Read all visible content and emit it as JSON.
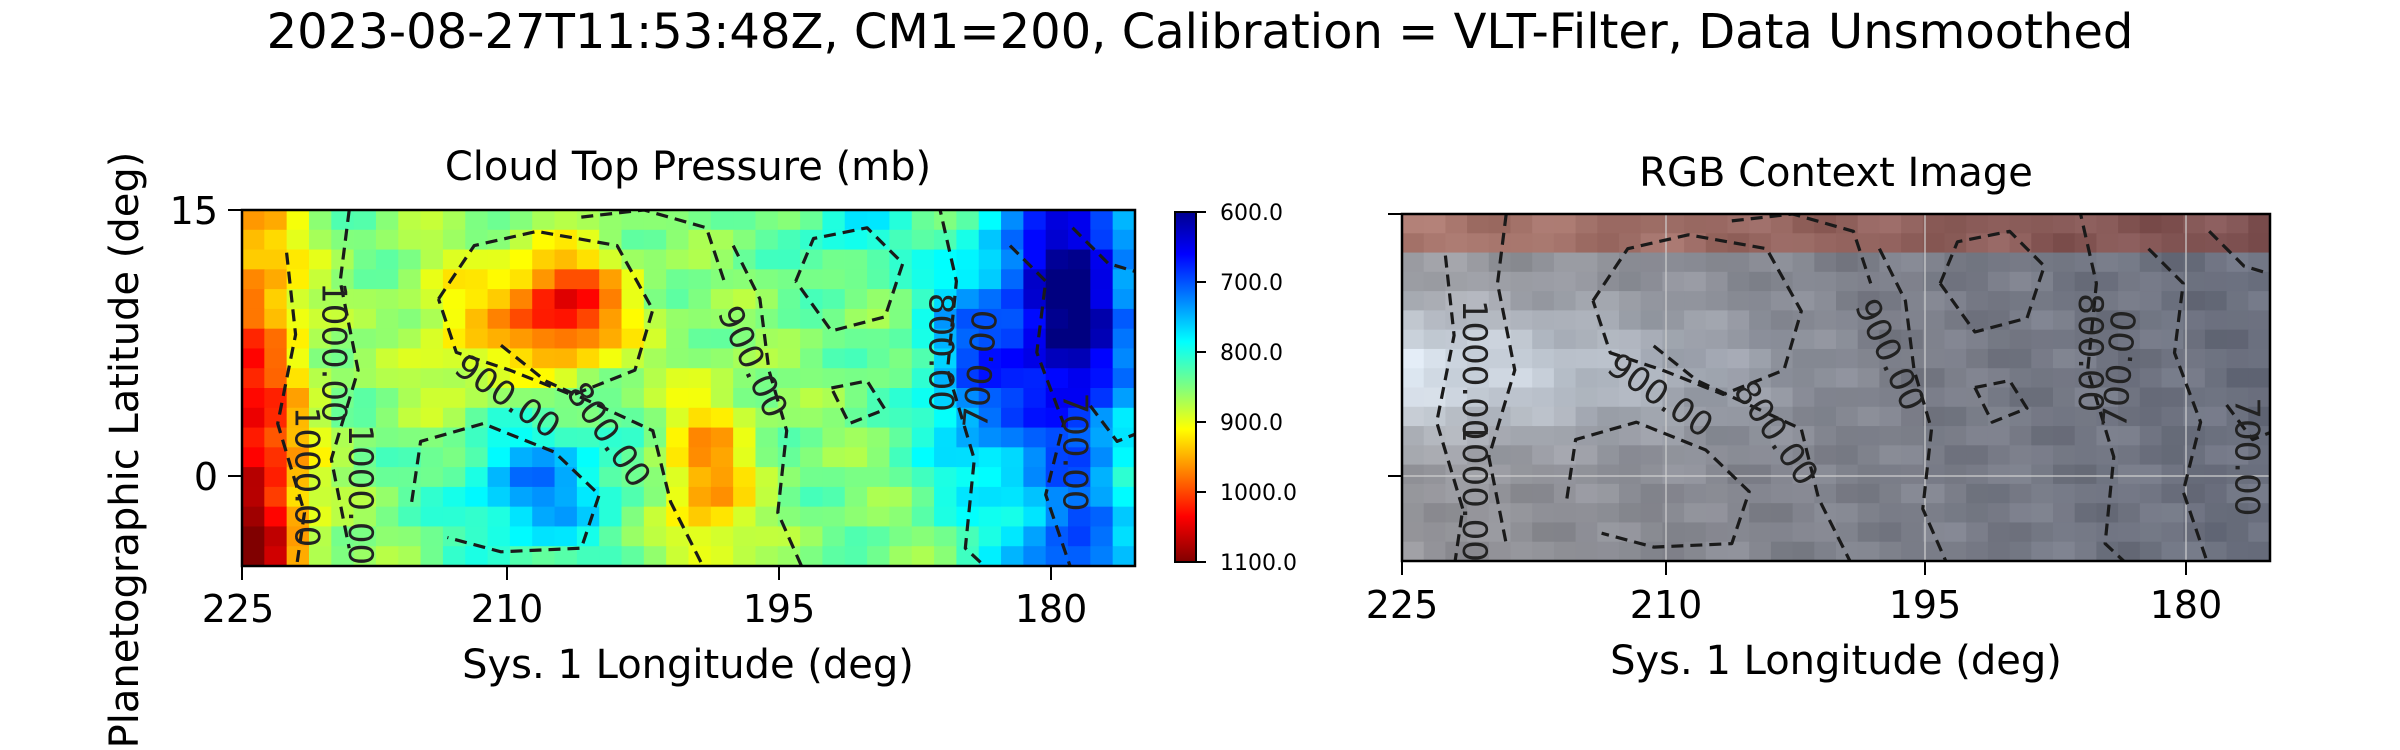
{
  "figure_title": "2023-08-27T11:53:48Z, CM1=200, Calibration = VLT-Filter, Data Unsmoothed",
  "chart_data": [
    {
      "type": "heatmap",
      "title": "Cloud Top Pressure (mb)",
      "xlabel": "Sys. 1 Longitude (deg)",
      "ylabel": "Planetographic Latitude (deg)",
      "x_ticks": [
        "225",
        "210",
        "195",
        "180"
      ],
      "y_ticks": [
        "15",
        "0"
      ],
      "xlim": [
        225,
        174
      ],
      "ylim": [
        -5,
        15
      ],
      "colorbar": {
        "ticks": [
          "600.0",
          "700.0",
          "800.0",
          "900.0",
          "1000.0",
          "1100.0"
        ],
        "range": [
          600,
          1100
        ],
        "colormap": "jet_r"
      },
      "contour_labels": [
        "1000.00",
        "1000.00",
        "900.00",
        "800.00",
        "900.00",
        "800.00",
        "700.00",
        "700.00",
        "1000.00"
      ],
      "grid": false
    },
    {
      "type": "heatmap",
      "title": "RGB Context Image",
      "xlabel": "Sys. 1 Longitude (deg)",
      "x_ticks": [
        "225",
        "210",
        "195",
        "180"
      ],
      "xlim": [
        225,
        174
      ],
      "ylim": [
        -5,
        15
      ],
      "contour_labels": [
        "1000.00",
        "1000.00",
        "900.00",
        "800.00",
        "900.00",
        "800.00",
        "700.00",
        "700.00"
      ],
      "grid": true
    }
  ]
}
